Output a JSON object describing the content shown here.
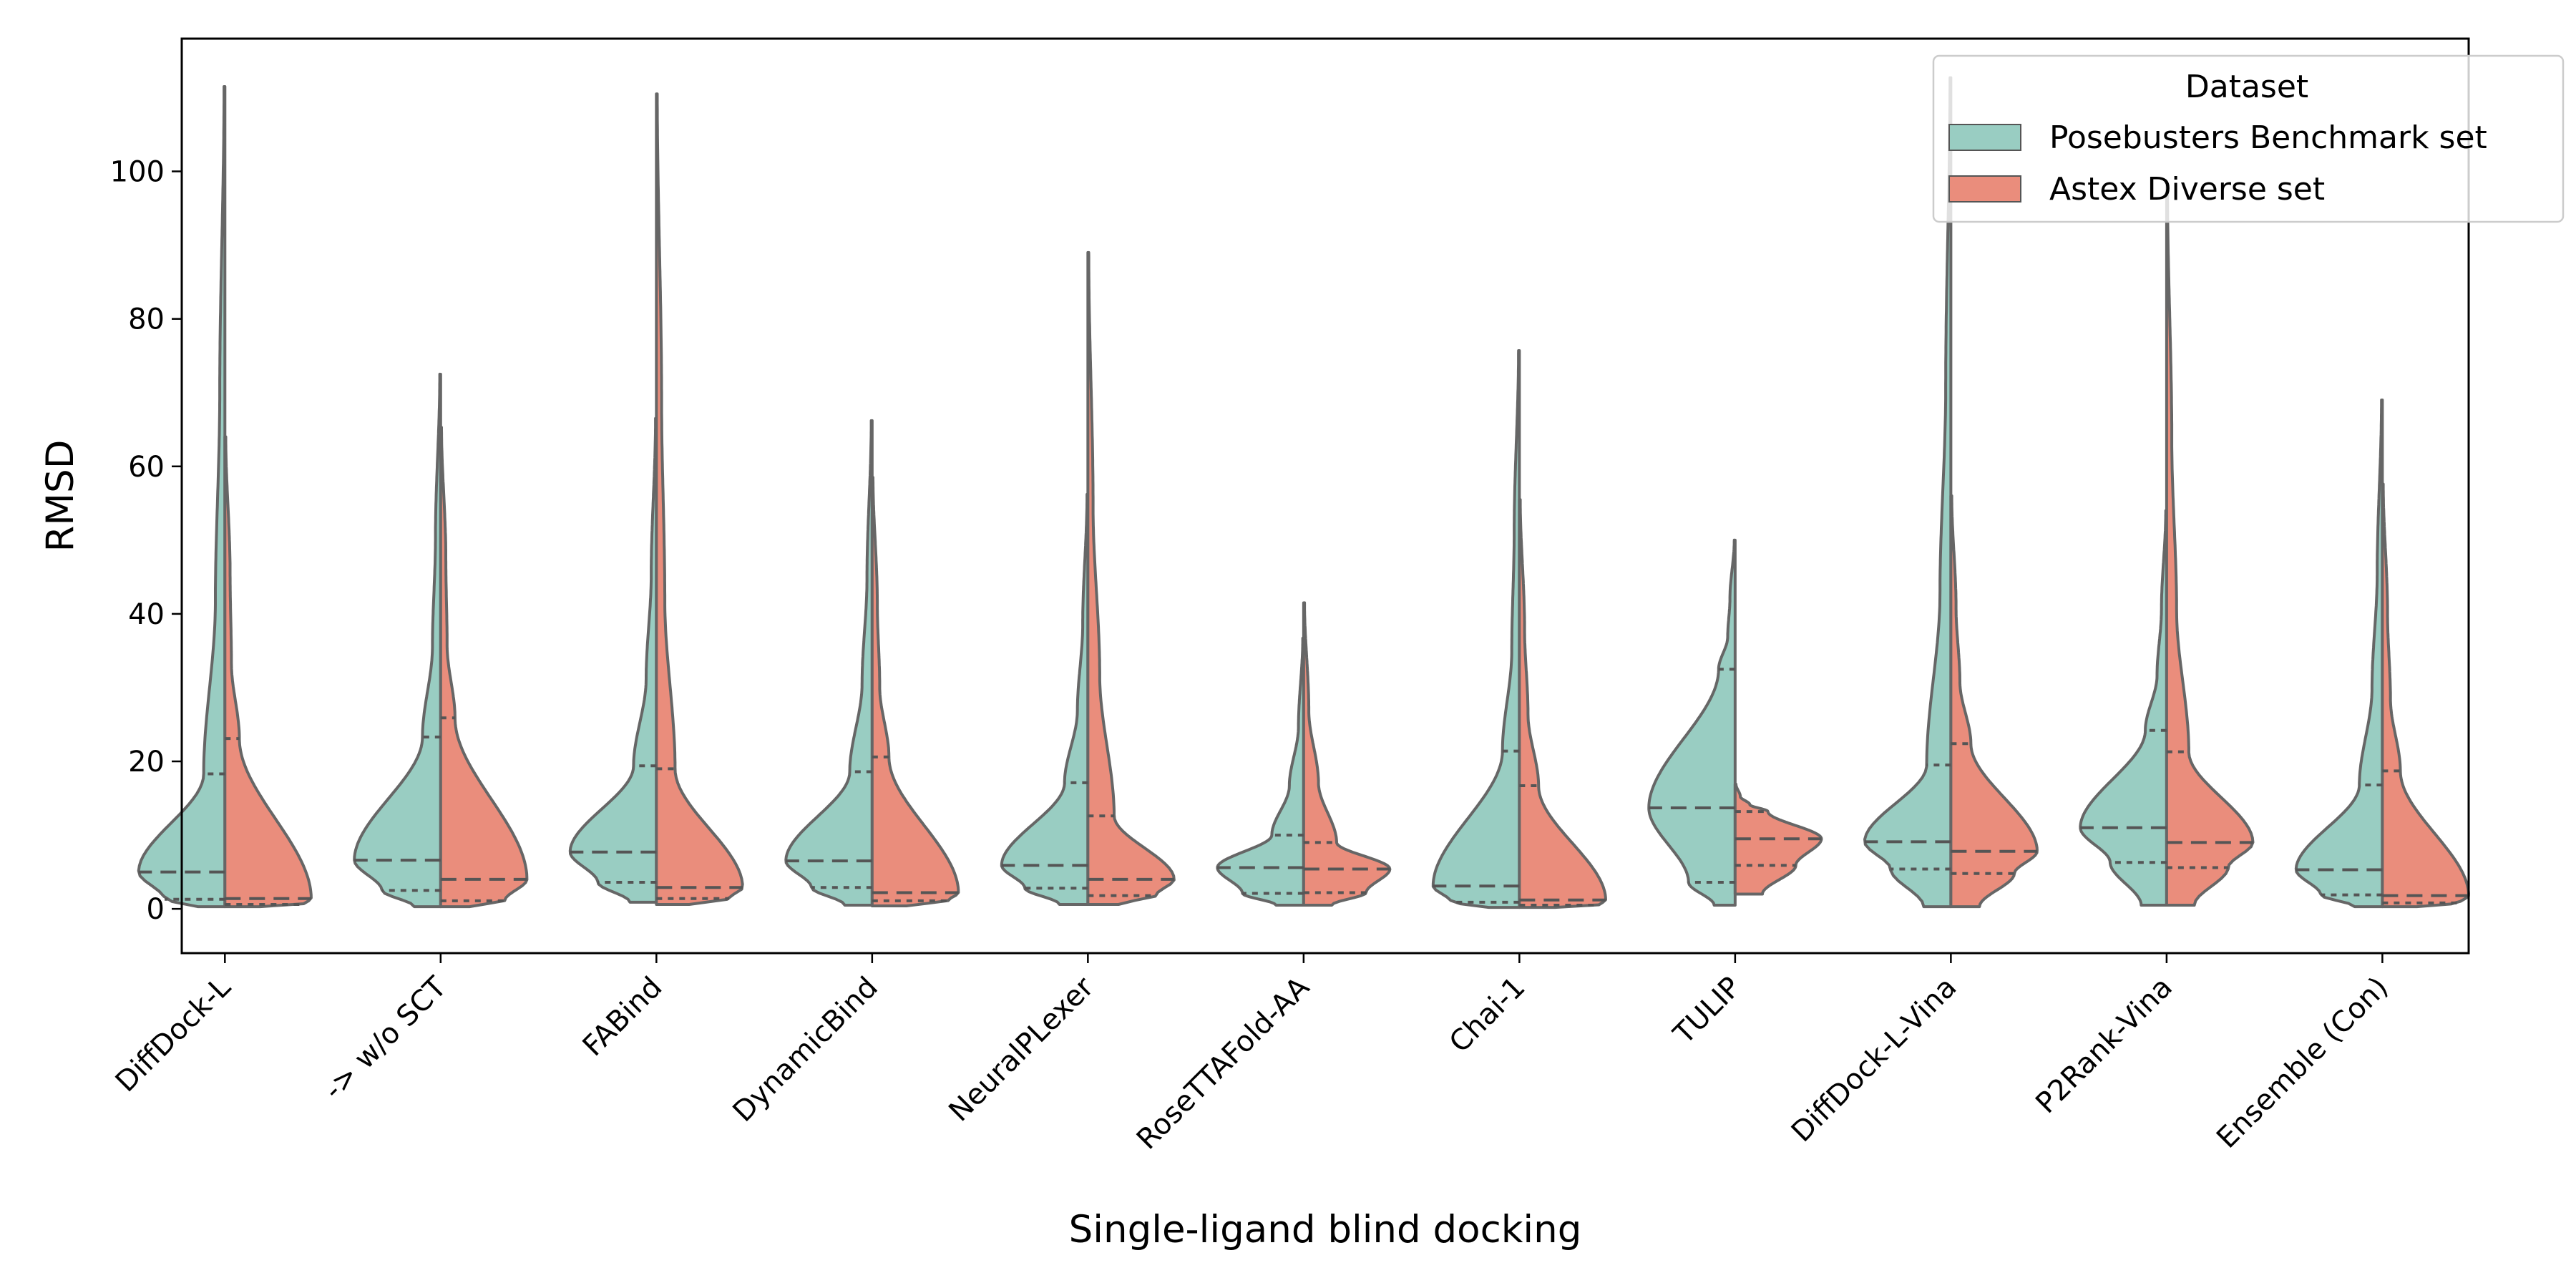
{
  "chart_data": {
    "type": "violin",
    "title": "",
    "xlabel": "Single-ligand blind docking",
    "ylabel": "RMSD",
    "ylim": [
      -6,
      118
    ],
    "yticks": [
      0,
      20,
      40,
      60,
      80,
      100
    ],
    "grid": false,
    "split": true,
    "inner": "quartiles",
    "cut": 0,
    "categories": [
      "DiffDock-L",
      "-> w/o SCT",
      "FABind",
      "DynamicBind",
      "NeuralPLexer",
      "RoseTTAFold-AA",
      "Chai-1",
      "TULIP",
      "DiffDock-L-Vina",
      "P2Rank-Vina",
      "Ensemble (Con)"
    ],
    "legend": {
      "title": "Dataset",
      "position": "top-right"
    },
    "series": [
      {
        "name": "Posebusters Benchmark set",
        "color": "#99cdc2",
        "side": "left",
        "distributions": [
          {
            "min": 0.3,
            "q1": 1.3,
            "median": 5.0,
            "q3": 18.3,
            "max": 111.5
          },
          {
            "min": 0.3,
            "q1": 2.5,
            "median": 6.6,
            "q3": 23.3,
            "max": 72.5
          },
          {
            "min": 0.9,
            "q1": 3.6,
            "median": 7.7,
            "q3": 19.4,
            "max": 66.5
          },
          {
            "min": 0.5,
            "q1": 2.9,
            "median": 6.5,
            "q3": 18.6,
            "max": 66.2
          },
          {
            "min": 0.6,
            "q1": 2.8,
            "median": 5.9,
            "q3": 17.1,
            "max": 56.2
          },
          {
            "min": 0.5,
            "q1": 2.1,
            "median": 5.6,
            "q3": 10.0,
            "max": 36.7
          },
          {
            "min": 0.2,
            "q1": 0.9,
            "median": 3.1,
            "q3": 21.4,
            "max": 75.7
          },
          {
            "min": 0.5,
            "q1": 3.6,
            "median": 13.7,
            "q3": 32.5,
            "max": 50.0
          },
          {
            "min": 0.3,
            "q1": 5.4,
            "median": 9.1,
            "q3": 19.5,
            "max": 112.7
          },
          {
            "min": 0.5,
            "q1": 6.3,
            "median": 11.0,
            "q3": 24.2,
            "max": 54.0
          },
          {
            "min": 0.3,
            "q1": 1.9,
            "median": 5.3,
            "q3": 16.8,
            "max": 69.0
          }
        ]
      },
      {
        "name": "Astex Diverse set",
        "color": "#ea8d7c",
        "side": "right",
        "distributions": [
          {
            "min": 0.3,
            "q1": 0.6,
            "median": 1.4,
            "q3": 23.1,
            "max": 64.0
          },
          {
            "min": 0.3,
            "q1": 1.1,
            "median": 4.0,
            "q3": 25.9,
            "max": 65.3
          },
          {
            "min": 0.6,
            "q1": 1.4,
            "median": 2.9,
            "q3": 19.0,
            "max": 110.5
          },
          {
            "min": 0.4,
            "q1": 1.1,
            "median": 2.2,
            "q3": 20.6,
            "max": 58.5
          },
          {
            "min": 0.6,
            "q1": 1.8,
            "median": 4.0,
            "q3": 12.6,
            "max": 89.0
          },
          {
            "min": 0.5,
            "q1": 2.2,
            "median": 5.4,
            "q3": 9.0,
            "max": 41.5
          },
          {
            "min": 0.2,
            "q1": 0.5,
            "median": 1.2,
            "q3": 16.7,
            "max": 55.5
          },
          {
            "min": 2.0,
            "q1": 5.9,
            "median": 9.5,
            "q3": 13.2,
            "max": 16.9
          },
          {
            "min": 0.3,
            "q1": 4.8,
            "median": 7.8,
            "q3": 22.4,
            "max": 56.0
          },
          {
            "min": 0.5,
            "q1": 5.6,
            "median": 9.0,
            "q3": 21.3,
            "max": 98.0
          },
          {
            "min": 0.3,
            "q1": 0.8,
            "median": 1.8,
            "q3": 18.7,
            "max": 57.6
          }
        ]
      }
    ]
  }
}
